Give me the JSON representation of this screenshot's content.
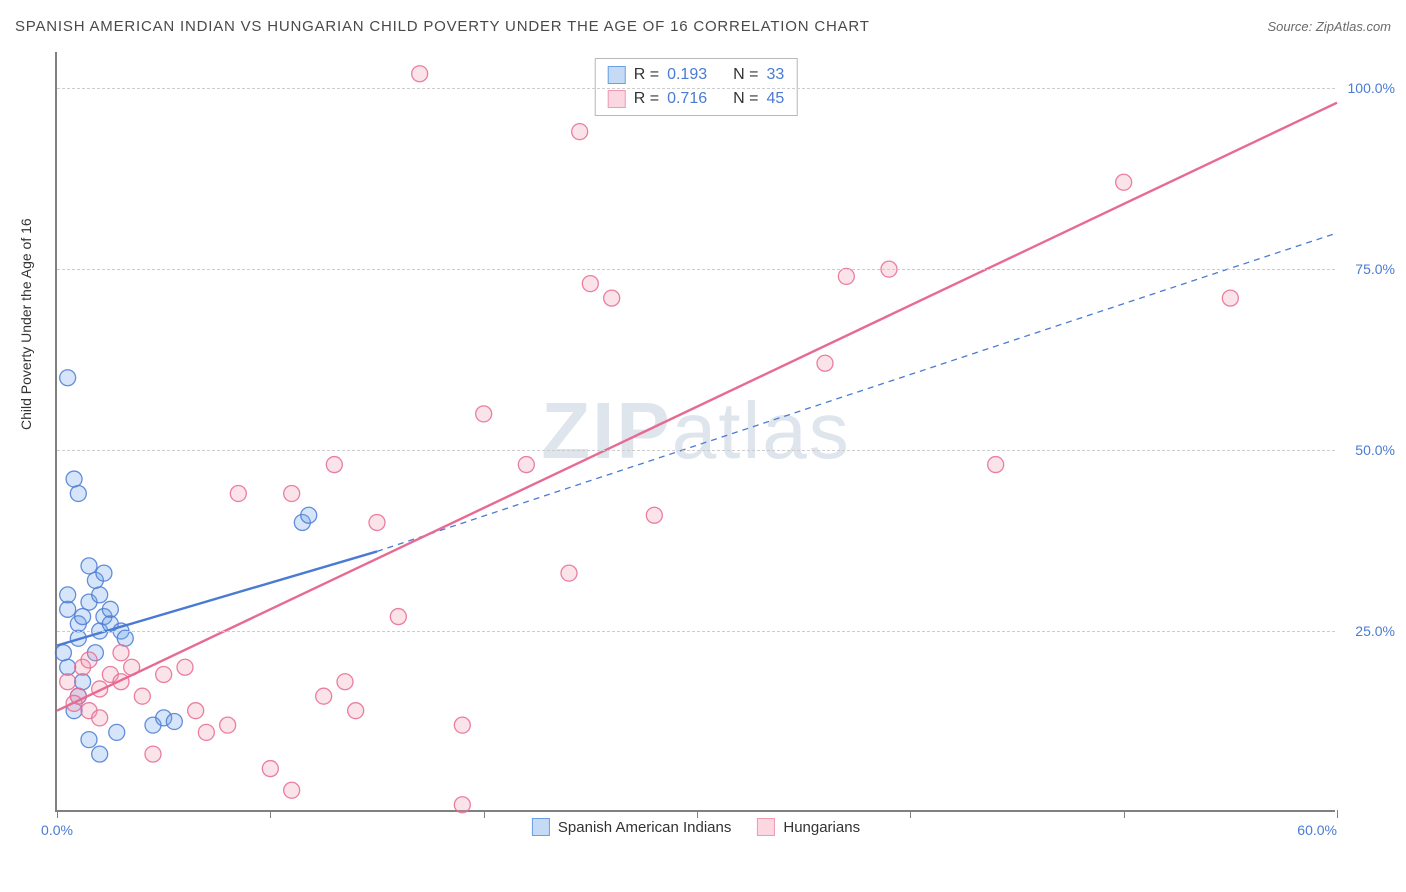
{
  "title": "SPANISH AMERICAN INDIAN VS HUNGARIAN CHILD POVERTY UNDER THE AGE OF 16 CORRELATION CHART",
  "source": "Source: ZipAtlas.com",
  "y_axis_label": "Child Poverty Under the Age of 16",
  "watermark_bold": "ZIP",
  "watermark_light": "atlas",
  "chart": {
    "type": "scatter",
    "xlim": [
      0,
      60
    ],
    "ylim": [
      0,
      105
    ],
    "x_ticks": [
      0,
      10,
      20,
      30,
      40,
      50,
      60
    ],
    "x_tick_labels": {
      "0": "0.0%",
      "60": "60.0%"
    },
    "y_ticks": [
      25,
      50,
      75,
      100
    ],
    "y_tick_labels": {
      "25": "25.0%",
      "50": "50.0%",
      "75": "75.0%",
      "100": "100.0%"
    },
    "background_color": "#ffffff",
    "grid_color": "#cccccc",
    "axis_color": "#808080",
    "tick_label_color": "#4a7bd4",
    "marker_radius": 8,
    "marker_fill_opacity": 0.28,
    "marker_stroke_opacity": 0.85,
    "marker_stroke_width": 1.3,
    "series": [
      {
        "name": "Spanish American Indians",
        "color": "#6aa0e8",
        "stroke": "#4a7bd4",
        "points": [
          [
            0.5,
            28
          ],
          [
            0.5,
            30
          ],
          [
            1.0,
            24
          ],
          [
            1.0,
            26
          ],
          [
            1.2,
            27
          ],
          [
            1.5,
            29
          ],
          [
            1.0,
            44
          ],
          [
            0.8,
            46
          ],
          [
            0.5,
            60
          ],
          [
            2.0,
            25
          ],
          [
            2.2,
            27
          ],
          [
            2.5,
            26
          ],
          [
            1.5,
            10
          ],
          [
            2.0,
            8
          ],
          [
            2.8,
            11
          ],
          [
            0.8,
            14
          ],
          [
            1.2,
            18
          ],
          [
            1.8,
            22
          ],
          [
            2.0,
            30
          ],
          [
            2.5,
            28
          ],
          [
            3.0,
            25
          ],
          [
            3.2,
            24
          ],
          [
            0.5,
            20
          ],
          [
            1.0,
            16
          ],
          [
            4.5,
            12
          ],
          [
            5.0,
            13
          ],
          [
            5.5,
            12.5
          ],
          [
            1.8,
            32
          ],
          [
            2.2,
            33
          ],
          [
            11.5,
            40
          ],
          [
            11.8,
            41
          ],
          [
            0.3,
            22
          ],
          [
            1.5,
            34
          ]
        ],
        "trend_solid": {
          "x1": 0,
          "y1": 23,
          "x2": 15,
          "y2": 36
        },
        "trend_dashed": {
          "x1": 15,
          "y1": 36,
          "x2": 60,
          "y2": 80
        }
      },
      {
        "name": "Hungarians",
        "color": "#f19ab4",
        "stroke": "#e76a92",
        "points": [
          [
            0.5,
            18
          ],
          [
            1.0,
            16
          ],
          [
            1.5,
            14
          ],
          [
            2.0,
            17
          ],
          [
            1.2,
            20
          ],
          [
            0.8,
            15
          ],
          [
            2.5,
            19
          ],
          [
            3.0,
            18
          ],
          [
            3.5,
            20
          ],
          [
            4.0,
            16
          ],
          [
            5.0,
            19
          ],
          [
            6.0,
            20
          ],
          [
            7.0,
            11
          ],
          [
            8.0,
            12
          ],
          [
            4.5,
            8
          ],
          [
            10.0,
            6
          ],
          [
            11.0,
            3
          ],
          [
            8.5,
            44
          ],
          [
            11.0,
            44
          ],
          [
            19.0,
            1
          ],
          [
            12.5,
            16
          ],
          [
            13.5,
            18
          ],
          [
            14.0,
            14
          ],
          [
            15.0,
            40
          ],
          [
            16.0,
            27
          ],
          [
            24.0,
            33
          ],
          [
            25.0,
            73
          ],
          [
            26.0,
            71
          ],
          [
            24.5,
            94
          ],
          [
            17.0,
            102
          ],
          [
            20.0,
            55
          ],
          [
            22.0,
            48
          ],
          [
            28.0,
            41
          ],
          [
            36.0,
            62
          ],
          [
            37.0,
            74
          ],
          [
            39.0,
            75
          ],
          [
            44.0,
            48
          ],
          [
            50.0,
            87
          ],
          [
            55.0,
            71
          ],
          [
            19.0,
            12
          ],
          [
            13.0,
            48
          ],
          [
            6.5,
            14
          ],
          [
            3.0,
            22
          ],
          [
            2.0,
            13
          ],
          [
            1.5,
            21
          ]
        ],
        "trend_solid": {
          "x1": 0,
          "y1": 14,
          "x2": 60,
          "y2": 98
        }
      }
    ]
  },
  "legend_top": {
    "rows": [
      {
        "swatch_fill": "#c5dbf5",
        "swatch_border": "#6aa0e8",
        "r_label": "R =",
        "r_val": "0.193",
        "n_label": "N =",
        "n_val": "33"
      },
      {
        "swatch_fill": "#fbd7e2",
        "swatch_border": "#f19ab4",
        "r_label": "R =",
        "r_val": "0.716",
        "n_label": "N =",
        "n_val": "45"
      }
    ]
  },
  "legend_bottom": {
    "items": [
      {
        "swatch_fill": "#c5dbf5",
        "swatch_border": "#6aa0e8",
        "label": "Spanish American Indians"
      },
      {
        "swatch_fill": "#fbd7e2",
        "swatch_border": "#f19ab4",
        "label": "Hungarians"
      }
    ]
  }
}
